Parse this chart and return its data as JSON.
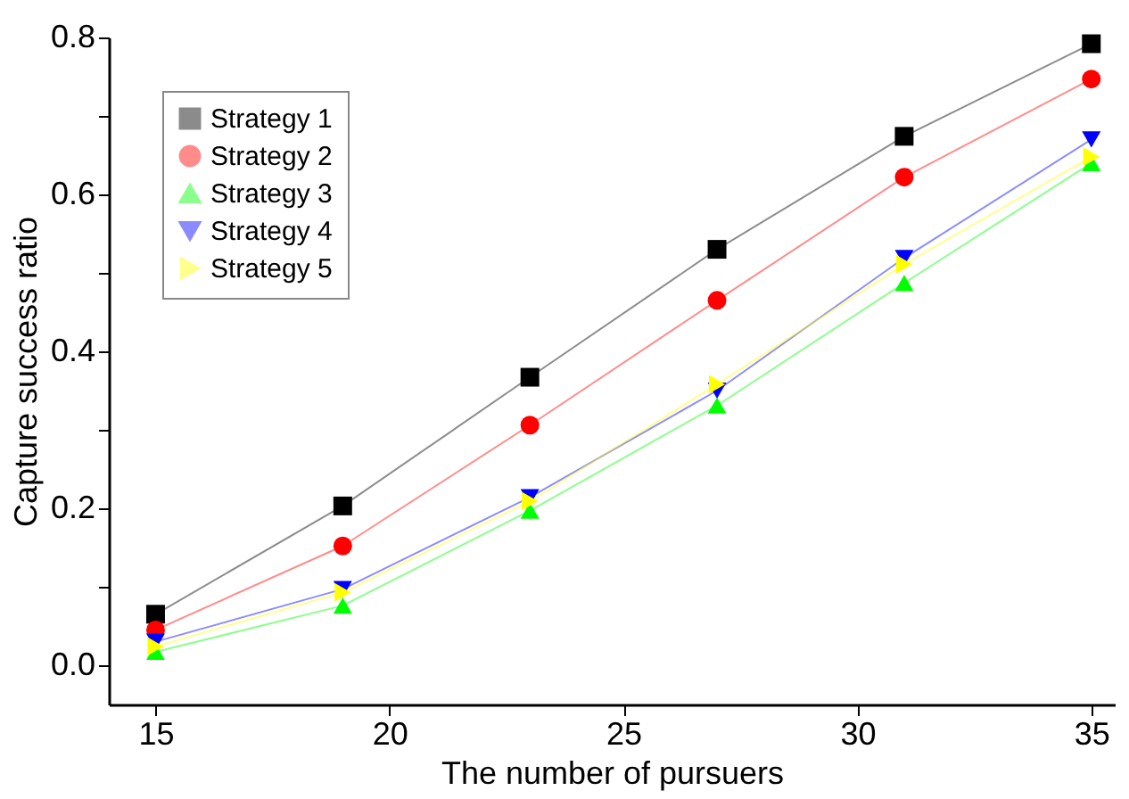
{
  "chart_data": {
    "type": "line",
    "xlabel": "The number of pursuers",
    "ylabel": "Capture success ratio",
    "x": [
      15,
      19,
      23,
      27,
      31,
      35
    ],
    "series": [
      {
        "name": "Strategy 1",
        "color": "#000000",
        "marker": "square",
        "values": [
          0.065,
          0.203,
          0.367,
          0.53,
          0.674,
          0.792
        ]
      },
      {
        "name": "Strategy 2",
        "color": "#ff0000",
        "marker": "circle",
        "values": [
          0.045,
          0.152,
          0.306,
          0.465,
          0.622,
          0.747
        ]
      },
      {
        "name": "Strategy 3",
        "color": "#00ff00",
        "marker": "triangle",
        "values": [
          0.017,
          0.076,
          0.197,
          0.331,
          0.487,
          0.64
        ]
      },
      {
        "name": "Strategy 4",
        "color": "#0000ff",
        "marker": "triangle-down",
        "values": [
          0.03,
          0.097,
          0.214,
          0.35,
          0.519,
          0.67
        ]
      },
      {
        "name": "Strategy 5",
        "color": "#ffff00",
        "marker": "triangle-right",
        "values": [
          0.024,
          0.093,
          0.209,
          0.358,
          0.511,
          0.648
        ]
      }
    ],
    "xlim": [
      14,
      35.5
    ],
    "xticks": [
      15,
      20,
      25,
      30,
      35
    ],
    "ylim": [
      -0.05,
      0.8
    ],
    "yticks": [
      "0.0",
      {
        "value": 0.1,
        "label": null
      },
      0.2,
      {
        "value": 0.3,
        "label": null
      },
      0.4,
      {
        "value": 0.5,
        "label": null
      },
      0.6,
      {
        "value": 0.7,
        "label": null
      },
      0.8
    ],
    "grid": false,
    "legend": "top left",
    "line_style": "solid"
  }
}
